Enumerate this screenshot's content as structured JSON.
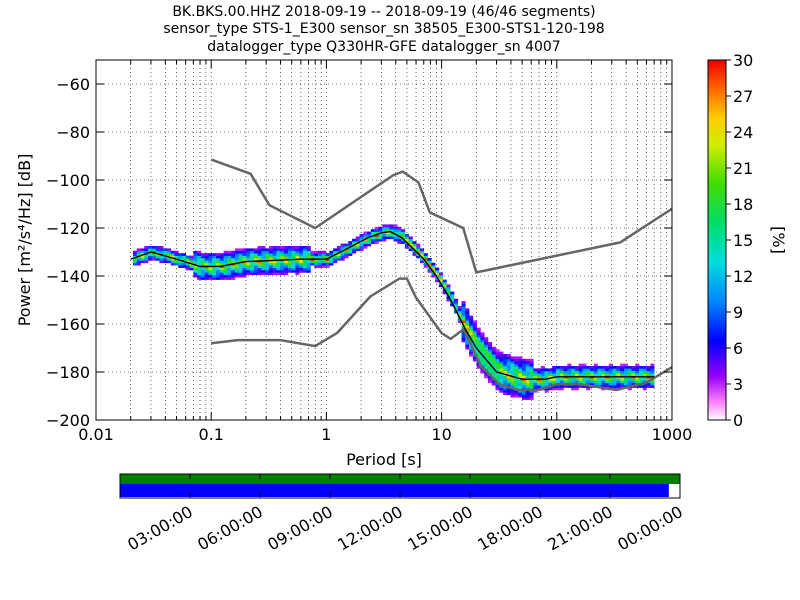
{
  "title_lines": [
    "BK.BKS.00.HHZ   2018-09-19 -- 2018-09-19  (46/46 segments)",
    "sensor_type STS-1_E300 sensor_sn 38505_E300-STS1-120-198",
    "datalogger_type Q330HR-GFE datalogger_sn 4007"
  ],
  "chart_data": {
    "type": "heatmap",
    "title": "BK.BKS.00.HHZ   2018-09-19 -- 2018-09-19  (46/46 segments)",
    "xlabel": "Period [s]",
    "ylabel": "Power [m²/s⁴/Hz] [dB]",
    "xscale": "log",
    "xlim": [
      0.01,
      1000
    ],
    "ylim": [
      -200,
      -50
    ],
    "xticks": [
      "0.01",
      "0.1",
      "1",
      "10",
      "100",
      "1000"
    ],
    "yticks": [
      "−60",
      "−80",
      "−100",
      "−120",
      "−140",
      "−160",
      "−180",
      "−200"
    ],
    "grid": true,
    "colorbar": {
      "label": "[%]",
      "range": [
        0,
        30
      ],
      "ticks": [
        "0",
        "3",
        "6",
        "9",
        "12",
        "15",
        "18",
        "21",
        "24",
        "27",
        "30"
      ]
    },
    "series": [
      {
        "role": "high-noise-model",
        "color": "#666666",
        "points": [
          [
            0.1,
            -91.5
          ],
          [
            0.22,
            -97.4
          ],
          [
            0.32,
            -110.5
          ],
          [
            0.8,
            -120
          ],
          [
            3.8,
            -98
          ],
          [
            4.6,
            -96.5
          ],
          [
            6.3,
            -101
          ],
          [
            7.9,
            -113.5
          ],
          [
            15.4,
            -120
          ],
          [
            20,
            -138.5
          ],
          [
            354.8,
            -126
          ],
          [
            1000,
            -112
          ]
        ]
      },
      {
        "role": "low-noise-model",
        "color": "#666666",
        "points": [
          [
            0.1,
            -168
          ],
          [
            0.17,
            -166.7
          ],
          [
            0.4,
            -166.7
          ],
          [
            0.8,
            -169.2
          ],
          [
            1.24,
            -163.7
          ],
          [
            2.4,
            -148.6
          ],
          [
            4.3,
            -141.1
          ],
          [
            5,
            -141.1
          ],
          [
            6,
            -149
          ],
          [
            10,
            -163.8
          ],
          [
            12,
            -166.2
          ],
          [
            15.6,
            -162.1
          ],
          [
            21.9,
            -177.5
          ],
          [
            31.6,
            -185
          ],
          [
            45,
            -187.5
          ],
          [
            70,
            -187.5
          ],
          [
            101,
            -185
          ],
          [
            154,
            -185
          ],
          [
            328,
            -187.5
          ],
          [
            600,
            -184.4
          ],
          [
            1000,
            -178
          ]
        ]
      },
      {
        "role": "psd-mode",
        "color": "#000000",
        "points": [
          [
            0.02,
            -133
          ],
          [
            0.03,
            -130
          ],
          [
            0.05,
            -133
          ],
          [
            0.08,
            -136
          ],
          [
            0.12,
            -136
          ],
          [
            0.2,
            -134
          ],
          [
            0.35,
            -133.5
          ],
          [
            0.6,
            -133
          ],
          [
            1,
            -133
          ],
          [
            1.6,
            -128
          ],
          [
            2.3,
            -124
          ],
          [
            3,
            -122
          ],
          [
            3.6,
            -121.5
          ],
          [
            4.5,
            -124
          ],
          [
            5.5,
            -128
          ],
          [
            7,
            -133
          ],
          [
            9,
            -140
          ],
          [
            12,
            -150
          ],
          [
            16,
            -162
          ],
          [
            20,
            -170
          ],
          [
            30,
            -180
          ],
          [
            50,
            -183
          ],
          [
            80,
            -183
          ],
          [
            100,
            -182
          ],
          [
            200,
            -182
          ],
          [
            400,
            -182
          ],
          [
            700,
            -182
          ]
        ]
      }
    ]
  },
  "timeline": {
    "tick_labels": [
      "03:00:00",
      "06:00:00",
      "09:00:00",
      "12:00:00",
      "15:00:00",
      "18:00:00",
      "21:00:00",
      "00:00:00"
    ],
    "data_coverage_fraction": 1.0,
    "psd_coverage_fraction": 0.98,
    "colors": {
      "data": "#008000",
      "psd": "#0000ff"
    }
  }
}
